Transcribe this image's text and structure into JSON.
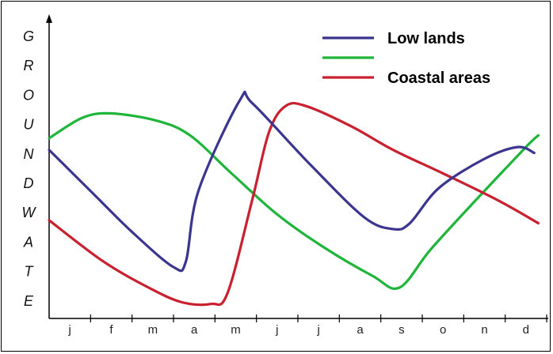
{
  "chart_data": {
    "type": "line",
    "title": "",
    "xlabel": "",
    "ylabel": "GROUNDWATE",
    "ylabel_letters": [
      "G",
      "R",
      "O",
      "U",
      "N",
      "D",
      "W",
      "A",
      "T",
      "E"
    ],
    "categories": [
      "j",
      "f",
      "m",
      "a",
      "m",
      "j",
      "j",
      "a",
      "s",
      "o",
      "n",
      "d"
    ],
    "xlim": [
      0,
      12
    ],
    "ylim": [
      0,
      100
    ],
    "grid": false,
    "legend_position": "top-right",
    "legend": [
      "Low lands",
      "",
      "Coastal areas"
    ],
    "series": [
      {
        "name": "Low lands",
        "color": "#3b3590",
        "points": [
          [
            0,
            57
          ],
          [
            1,
            43
          ],
          [
            2,
            29
          ],
          [
            3,
            17
          ],
          [
            3.3,
            19
          ],
          [
            3.6,
            43
          ],
          [
            4.6,
            74
          ],
          [
            4.9,
            73
          ],
          [
            6.3,
            52
          ],
          [
            7.6,
            34
          ],
          [
            8.3,
            30
          ],
          [
            8.7,
            32
          ],
          [
            9.4,
            44
          ],
          [
            10.5,
            54
          ],
          [
            11.3,
            58
          ],
          [
            11.7,
            56
          ]
        ]
      },
      {
        "name": "",
        "color": "#1fb53a",
        "points": [
          [
            0,
            61
          ],
          [
            0.8,
            68
          ],
          [
            1.5,
            69.5
          ],
          [
            2.6,
            67
          ],
          [
            3.4,
            62
          ],
          [
            4.4,
            49
          ],
          [
            5.5,
            35
          ],
          [
            6.6,
            24
          ],
          [
            7.8,
            14
          ],
          [
            8.45,
            10
          ],
          [
            9.2,
            23
          ],
          [
            10.3,
            40
          ],
          [
            11.5,
            58
          ],
          [
            11.8,
            62
          ]
        ]
      },
      {
        "name": "Coastal areas",
        "color": "#c8202e",
        "points": [
          [
            0,
            33
          ],
          [
            1.3,
            19
          ],
          [
            2.4,
            10
          ],
          [
            3.2,
            5
          ],
          [
            3.9,
            4.4
          ],
          [
            4.3,
            8
          ],
          [
            4.9,
            40
          ],
          [
            5.3,
            63
          ],
          [
            5.7,
            72
          ],
          [
            6.2,
            72
          ],
          [
            7.3,
            65
          ],
          [
            8.3,
            57
          ],
          [
            9.5,
            49
          ],
          [
            10.8,
            40
          ],
          [
            11.8,
            32
          ]
        ]
      }
    ]
  }
}
